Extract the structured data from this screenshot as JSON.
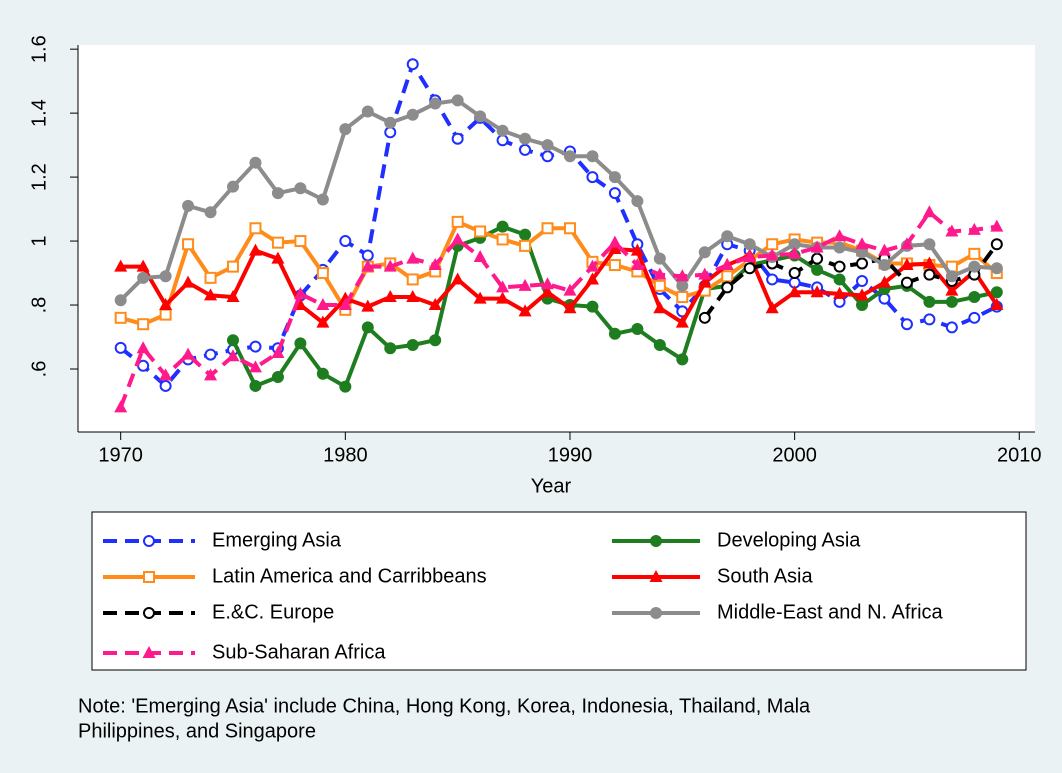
{
  "chart_data": {
    "type": "line",
    "x_label": "Year",
    "x": [
      1970,
      1971,
      1972,
      1973,
      1974,
      1975,
      1976,
      1977,
      1978,
      1979,
      1980,
      1981,
      1982,
      1983,
      1984,
      1985,
      1986,
      1987,
      1988,
      1989,
      1990,
      1991,
      1992,
      1993,
      1994,
      1995,
      1996,
      1997,
      1998,
      1999,
      2000,
      2001,
      2002,
      2003,
      2004,
      2005,
      2006,
      2007,
      2008,
      2009
    ],
    "xlim": [
      1968.1,
      2010.7
    ],
    "xticks": [
      1970,
      1980,
      1990,
      2000,
      2010
    ],
    "ylim": [
      0.403,
      1.613
    ],
    "yticks": [
      {
        "value": 0.6,
        "label": ".6"
      },
      {
        "value": 0.8,
        "label": ".8"
      },
      1,
      1.2,
      1.4,
      1.6
    ],
    "grid": false,
    "legend_position": "bottom",
    "series": [
      {
        "name": "Emerging Asia",
        "color": "#1f2fff",
        "dashed": true,
        "marker": "circle-open",
        "values": [
          0.666,
          0.61,
          0.547,
          0.63,
          0.645,
          0.66,
          0.67,
          0.665,
          0.83,
          0.91,
          1.0,
          0.955,
          1.34,
          1.553,
          1.44,
          1.32,
          1.385,
          1.315,
          1.285,
          1.265,
          1.28,
          1.2,
          1.15,
          0.99,
          0.85,
          0.78,
          0.86,
          0.99,
          0.97,
          0.88,
          0.87,
          0.855,
          0.81,
          0.875,
          0.82,
          0.74,
          0.755,
          0.73,
          0.76,
          0.795
        ]
      },
      {
        "name": "Developing Asia",
        "color": "#1e7d1e",
        "dashed": false,
        "marker": "circle",
        "values": [
          null,
          null,
          null,
          null,
          null,
          0.69,
          0.547,
          0.575,
          0.68,
          0.585,
          0.545,
          0.73,
          0.665,
          0.675,
          0.69,
          0.985,
          1.01,
          1.045,
          1.02,
          0.82,
          0.8,
          0.795,
          0.71,
          0.725,
          0.675,
          0.63,
          0.85,
          0.86,
          0.925,
          0.94,
          0.955,
          0.91,
          0.88,
          0.8,
          0.85,
          0.86,
          0.81,
          0.81,
          0.825,
          0.84
        ]
      },
      {
        "name": "Latin America and Carribbeans",
        "color": "#ff8c1a",
        "dashed": false,
        "marker": "square-open",
        "values": [
          0.76,
          0.74,
          0.77,
          0.99,
          0.885,
          0.92,
          1.04,
          0.995,
          1.0,
          0.9,
          0.785,
          0.92,
          0.93,
          0.88,
          0.905,
          1.06,
          1.03,
          1.005,
          0.985,
          1.04,
          1.04,
          0.935,
          0.925,
          0.905,
          0.86,
          0.825,
          0.845,
          0.89,
          0.94,
          0.99,
          1.005,
          0.995,
          0.995,
          0.97,
          0.93,
          0.93,
          0.925,
          0.92,
          0.96,
          0.9
        ]
      },
      {
        "name": "South Asia",
        "color": "#ff0000",
        "dashed": false,
        "marker": "triangle",
        "values": [
          0.92,
          0.92,
          0.8,
          0.87,
          0.83,
          0.825,
          0.97,
          0.945,
          0.8,
          0.745,
          0.82,
          0.795,
          0.825,
          0.825,
          0.8,
          0.88,
          0.82,
          0.82,
          0.78,
          0.84,
          0.79,
          0.88,
          0.975,
          0.97,
          0.79,
          0.745,
          0.87,
          0.925,
          0.955,
          0.79,
          0.84,
          0.84,
          0.835,
          0.83,
          0.87,
          0.925,
          0.93,
          0.845,
          0.905,
          0.8
        ]
      },
      {
        "name": "E.&C. Europe",
        "color": "#000000",
        "dashed": true,
        "marker": "circle-open",
        "values": [
          null,
          null,
          null,
          null,
          null,
          null,
          null,
          null,
          null,
          null,
          null,
          null,
          null,
          null,
          null,
          null,
          null,
          null,
          null,
          null,
          null,
          null,
          null,
          null,
          null,
          null,
          0.76,
          0.855,
          0.915,
          0.93,
          0.9,
          0.945,
          0.92,
          0.93,
          0.945,
          0.87,
          0.895,
          0.875,
          0.895,
          0.99
        ]
      },
      {
        "name": "Middle-East and N. Africa",
        "color": "#8c8c8c",
        "dashed": false,
        "marker": "circle",
        "values": [
          0.815,
          0.885,
          0.89,
          1.11,
          1.09,
          1.17,
          1.245,
          1.15,
          1.165,
          1.13,
          1.35,
          1.405,
          1.37,
          1.395,
          1.43,
          1.44,
          1.39,
          1.345,
          1.32,
          1.3,
          1.265,
          1.265,
          1.2,
          1.125,
          0.945,
          0.86,
          0.965,
          1.015,
          0.99,
          0.95,
          0.99,
          0.98,
          0.98,
          0.965,
          0.925,
          0.985,
          0.99,
          0.89,
          0.92,
          0.915
        ]
      },
      {
        "name": "Sub-Saharan Africa",
        "color": "#ff1a8c",
        "dashed": true,
        "marker": "triangle",
        "values": [
          0.48,
          0.665,
          0.58,
          0.645,
          0.58,
          0.64,
          0.605,
          0.65,
          0.835,
          0.8,
          0.8,
          0.92,
          0.92,
          0.945,
          0.925,
          1.005,
          0.95,
          0.855,
          0.86,
          0.865,
          0.845,
          0.92,
          0.995,
          0.925,
          0.895,
          0.89,
          0.895,
          0.925,
          0.95,
          0.955,
          0.96,
          0.98,
          1.015,
          0.99,
          0.97,
          0.99,
          1.09,
          1.03,
          1.035,
          1.045
        ]
      }
    ],
    "note": [
      "Note: 'Emerging Asia' include China, Hong Kong, Korea, Indonesia, Thailand, Mala",
      "Philippines, and Singapore"
    ]
  }
}
